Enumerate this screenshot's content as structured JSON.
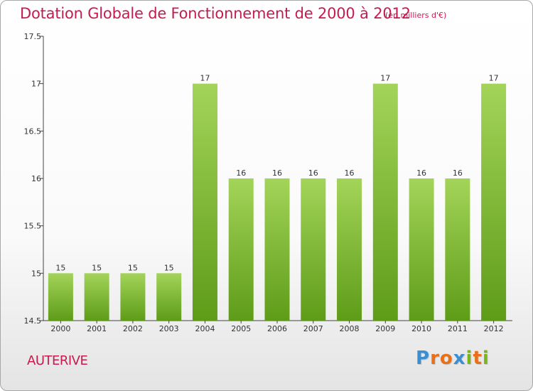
{
  "title": "Dotation Globale de Fonctionnement de 2000 à 2012",
  "unit_note": "(en milliers d'€)",
  "place": "AUTERIVE",
  "logo": {
    "letters": [
      "P",
      "r",
      "o",
      "x",
      "i",
      "t",
      "i"
    ],
    "colors": [
      "#3b8ed0",
      "#e8701a",
      "#e8701a",
      "#3b8ed0",
      "#7ab51d",
      "#e8701a",
      "#7ab51d"
    ]
  },
  "colors": {
    "bar_light": "#a3d459",
    "bar_dark": "#5e9c18",
    "title": "#c51c50"
  },
  "chart_data": {
    "type": "bar",
    "categories": [
      "2000",
      "2001",
      "2002",
      "2003",
      "2004",
      "2005",
      "2006",
      "2007",
      "2008",
      "2009",
      "2010",
      "2011",
      "2012"
    ],
    "values": [
      15,
      15,
      15,
      15,
      17,
      16,
      16,
      16,
      16,
      17,
      16,
      16,
      17
    ],
    "value_labels": [
      "15",
      "15",
      "15",
      "15",
      "17",
      "16",
      "16",
      "16",
      "16",
      "17",
      "16",
      "16",
      "17"
    ],
    "yticks": [
      "14.5",
      "15",
      "15.5",
      "16",
      "16.5",
      "17",
      "17.5"
    ],
    "ylim": [
      14.5,
      17.5
    ],
    "grid": false
  }
}
